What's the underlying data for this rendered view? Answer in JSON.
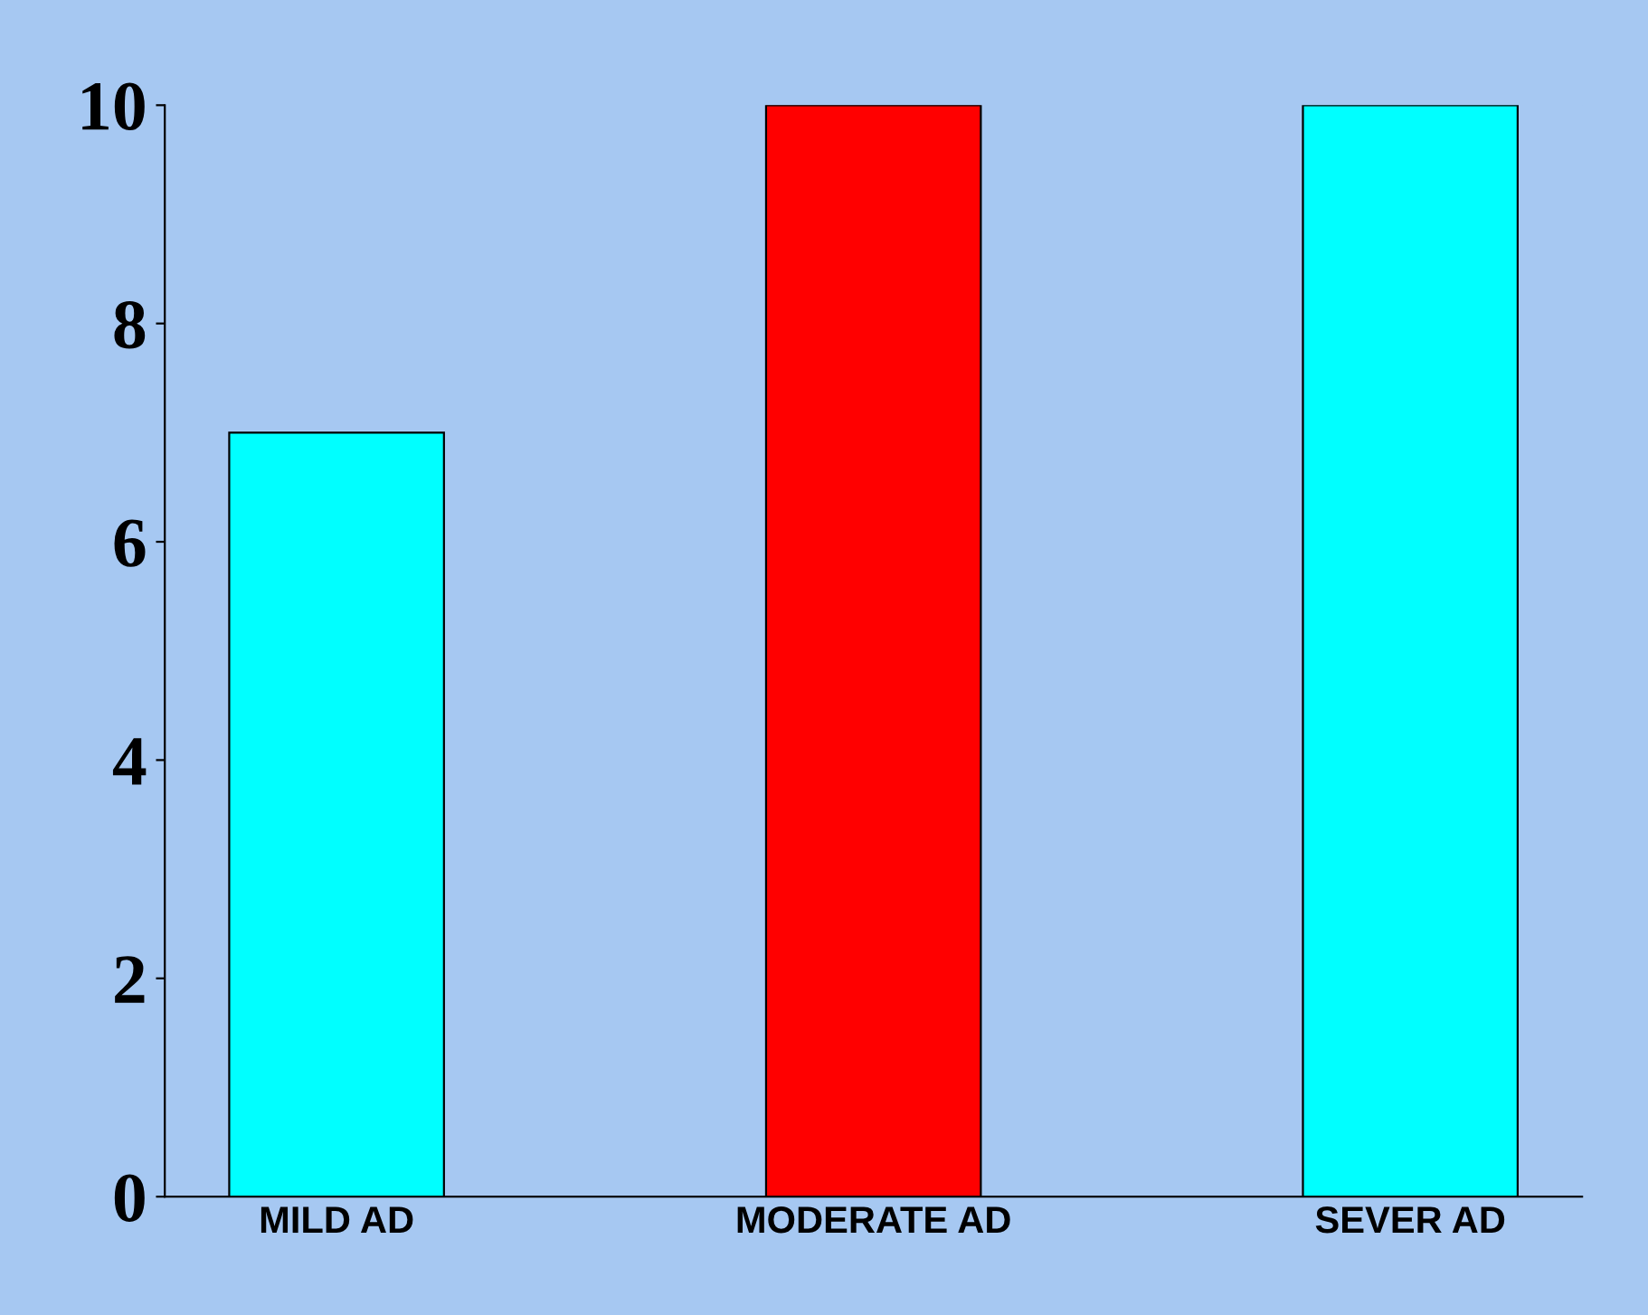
{
  "chart_data": {
    "type": "bar",
    "categories": [
      "MILD AD",
      "MODERATE AD",
      "SEVER AD"
    ],
    "values": [
      7,
      10,
      10
    ],
    "colors": [
      "#00ffff",
      "#ff0000",
      "#00ffff"
    ],
    "ylim": [
      0,
      10
    ],
    "yticks": [
      0,
      2,
      4,
      6,
      8,
      10
    ],
    "grid": false
  }
}
